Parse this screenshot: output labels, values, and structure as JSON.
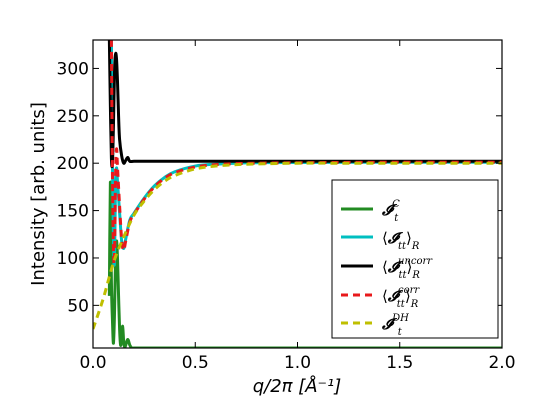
{
  "chart_data": {
    "type": "line",
    "xlabel": "q/2π [Å⁻¹]",
    "ylabel": "Intensity [arb. units]",
    "xlim": [
      0.0,
      2.0
    ],
    "ylim": [
      5,
      330
    ],
    "xticks": [
      "0.0",
      "0.5",
      "1.0",
      "1.5",
      "2.0"
    ],
    "yticks": [
      "50",
      "100",
      "150",
      "200",
      "250",
      "300"
    ],
    "legend_position": "lower-right",
    "series": [
      {
        "name": "𝓘_t^C",
        "label_main": "𝓘",
        "label_sub": "t",
        "label_sup": "C",
        "label_pre": "",
        "label_post": "",
        "color": "#228B22",
        "dash": "solid",
        "x": [
          0.08,
          0.085,
          0.09,
          0.095,
          0.1,
          0.105,
          0.11,
          0.115,
          0.12,
          0.125,
          0.13,
          0.135,
          0.14,
          0.145,
          0.15,
          0.155,
          0.16,
          0.17,
          0.18,
          0.19,
          0.2,
          0.25,
          0.3,
          0.5,
          1.0,
          1.5,
          2.0
        ],
        "y": [
          60,
          180,
          75,
          35,
          10,
          40,
          95,
          118,
          98,
          60,
          25,
          8,
          15,
          28,
          12,
          6,
          8,
          14,
          8,
          5,
          5,
          5,
          5,
          5,
          5,
          5,
          5
        ]
      },
      {
        "name": "⟨𝓘_tt⟩_R",
        "label_main": "𝓘",
        "label_sub": "tt",
        "label_sup": "",
        "label_pre": "⟨",
        "label_post": "⟩",
        "color": "#00BFC0",
        "dash": "solid",
        "x": [
          0.09,
          0.095,
          0.1,
          0.105,
          0.11,
          0.115,
          0.12,
          0.13,
          0.14,
          0.15,
          0.16,
          0.18,
          0.2,
          0.25,
          0.3,
          0.35,
          0.4,
          0.5,
          0.6,
          0.7,
          0.8,
          1.0,
          1.5,
          2.0
        ],
        "y": [
          330,
          200,
          120,
          95,
          175,
          195,
          180,
          148,
          118,
          110,
          120,
          140,
          147,
          163,
          176,
          185,
          191,
          197,
          199,
          200,
          200.5,
          200.8,
          201,
          201
        ]
      },
      {
        "name": "⟨𝓘_tt^uncorr⟩_R",
        "label_main": "𝓘",
        "label_sub": "tt",
        "label_sup": "uncorr",
        "label_pre": "⟨",
        "label_post": "⟩",
        "color": "#000000",
        "dash": "solid",
        "x": [
          0.08,
          0.085,
          0.09,
          0.095,
          0.1,
          0.105,
          0.11,
          0.115,
          0.12,
          0.125,
          0.13,
          0.14,
          0.15,
          0.16,
          0.17,
          0.18,
          0.2,
          0.25,
          0.3,
          0.5,
          1.0,
          1.5,
          2.0
        ],
        "y": [
          330,
          260,
          205,
          200,
          240,
          295,
          315,
          310,
          285,
          250,
          225,
          208,
          200,
          203,
          206,
          202,
          202,
          202,
          202,
          202,
          202,
          202,
          202
        ]
      },
      {
        "name": "⟨𝓘_tt^corr⟩_R",
        "label_main": "𝓘",
        "label_sub": "tt",
        "label_sup": "corr",
        "label_pre": "⟨",
        "label_post": "⟩",
        "color": "#E8191B",
        "dash": "dashed",
        "x": [
          0.09,
          0.095,
          0.1,
          0.105,
          0.11,
          0.115,
          0.12,
          0.13,
          0.14,
          0.15,
          0.16,
          0.18,
          0.2,
          0.25,
          0.3,
          0.35,
          0.4,
          0.5,
          0.6,
          0.7,
          0.8,
          1.0,
          1.5,
          2.0
        ],
        "y": [
          330,
          190,
          110,
          100,
          185,
          215,
          195,
          155,
          120,
          108,
          118,
          138,
          146,
          162,
          175,
          184,
          190,
          196,
          198.5,
          199.5,
          200,
          200.5,
          201,
          201
        ]
      },
      {
        "name": "𝓘_t^DH",
        "label_main": "𝓘",
        "label_sub": "t",
        "label_sup": "DH",
        "label_pre": "",
        "label_post": "",
        "color": "#BFBF00",
        "dash": "dashed",
        "x": [
          0.0,
          0.05,
          0.1,
          0.15,
          0.2,
          0.25,
          0.3,
          0.35,
          0.4,
          0.5,
          0.6,
          0.7,
          0.8,
          1.0,
          1.2,
          1.5,
          2.0
        ],
        "y": [
          25,
          57,
          95,
          122,
          145,
          160,
          172,
          181,
          187,
          194,
          197,
          198.5,
          199.2,
          200,
          200,
          200,
          200
        ]
      }
    ]
  }
}
